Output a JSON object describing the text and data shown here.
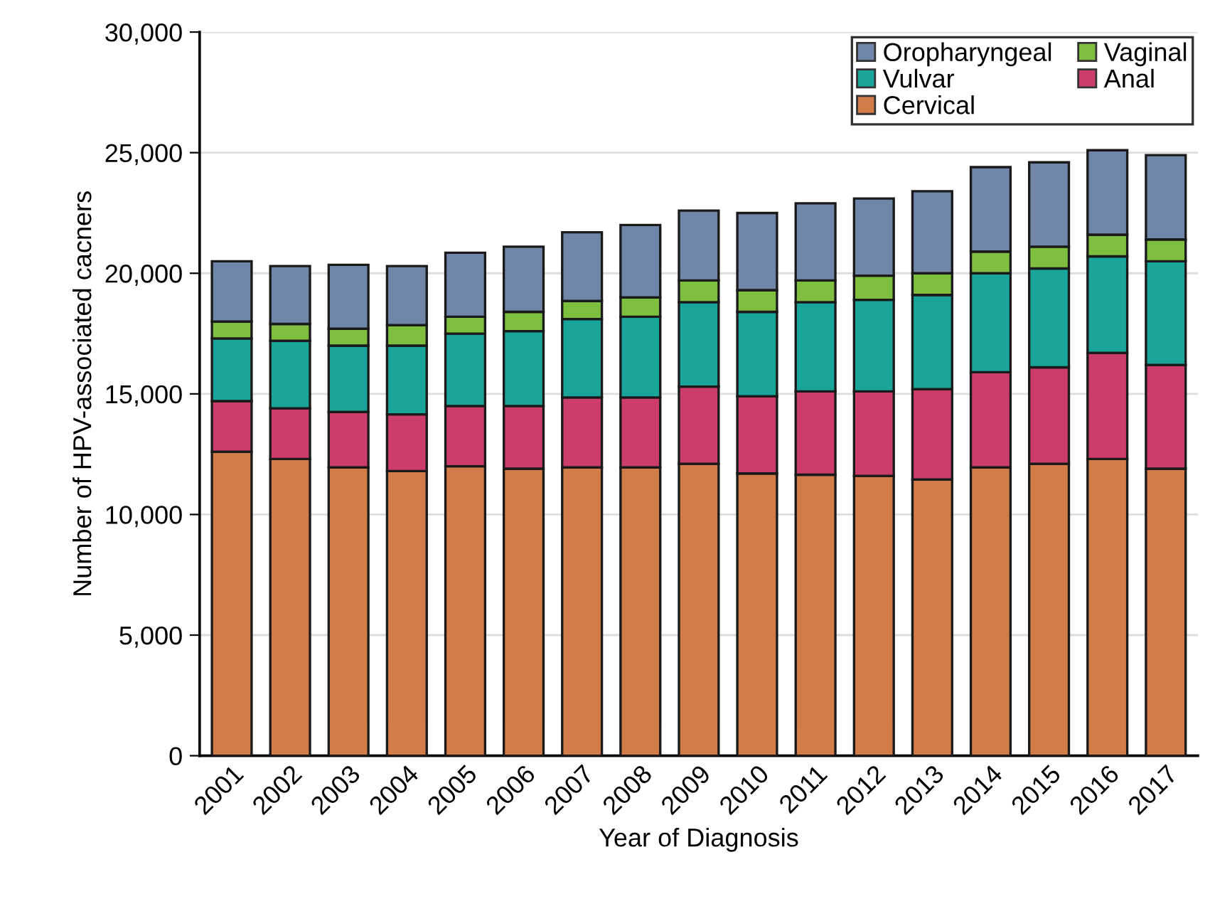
{
  "chart_data": {
    "type": "bar",
    "stacked": true,
    "xlabel": "Year of Diagnosis",
    "ylabel": "Number of HPV-associated cacners",
    "categories": [
      "2001",
      "2002",
      "2003",
      "2004",
      "2005",
      "2006",
      "2007",
      "2008",
      "2009",
      "2010",
      "2011",
      "2012",
      "2013",
      "2014",
      "2015",
      "2016",
      "2017"
    ],
    "series": [
      {
        "name": "Cervical",
        "color": "#d27c4a",
        "values": [
          12600,
          12300,
          11950,
          11800,
          12000,
          11900,
          11950,
          11950,
          12100,
          11700,
          11650,
          11600,
          11450,
          11950,
          12100,
          12300,
          11900
        ]
      },
      {
        "name": "Anal",
        "color": "#cc3d6a",
        "values": [
          2100,
          2100,
          2300,
          2350,
          2500,
          2600,
          2900,
          2900,
          3200,
          3200,
          3450,
          3500,
          3750,
          3950,
          4000,
          4400,
          4300
        ]
      },
      {
        "name": "Vulvar",
        "color": "#1aa59a",
        "values": [
          2600,
          2800,
          2750,
          2850,
          3000,
          3100,
          3250,
          3350,
          3500,
          3500,
          3700,
          3800,
          3900,
          4100,
          4100,
          4000,
          4300
        ]
      },
      {
        "name": "Vaginal",
        "color": "#7fbf3f",
        "values": [
          700,
          700,
          700,
          850,
          700,
          800,
          750,
          800,
          900,
          900,
          900,
          1000,
          900,
          900,
          900,
          900,
          900
        ]
      },
      {
        "name": "Oropharyngeal",
        "color": "#6f86a8",
        "values": [
          2500,
          2400,
          2650,
          2450,
          2650,
          2700,
          2850,
          3000,
          2900,
          3200,
          3200,
          3200,
          3400,
          3500,
          3500,
          3500,
          3500
        ]
      }
    ],
    "ylim": [
      0,
      30000
    ],
    "yticks": [
      {
        "value": 0,
        "label": "0"
      },
      {
        "value": 5000,
        "label": "5,000"
      },
      {
        "value": 10000,
        "label": "10,000"
      },
      {
        "value": 15000,
        "label": "15,000"
      },
      {
        "value": 20000,
        "label": "20,000"
      },
      {
        "value": 25000,
        "label": "25,000"
      },
      {
        "value": 30000,
        "label": "30,000"
      }
    ],
    "grid": "y",
    "legend": "top right"
  }
}
